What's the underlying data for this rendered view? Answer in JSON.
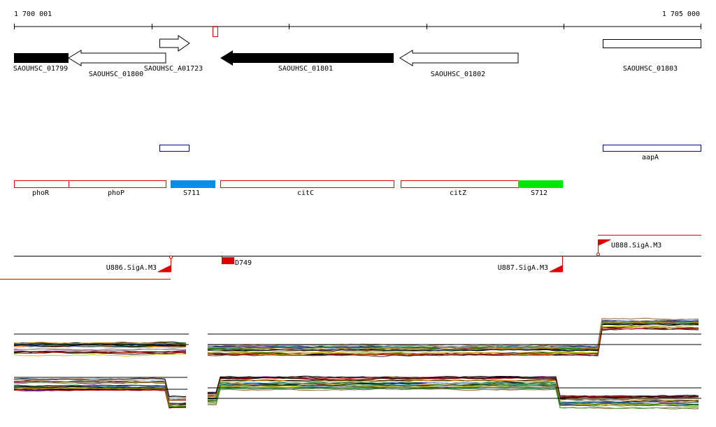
{
  "ruler": {
    "start_label": "1 700 001",
    "end_label": "1 705 000"
  },
  "genes": [
    {
      "label": "SAOUHSC_01799"
    },
    {
      "label": "SAOUHSC_01800"
    },
    {
      "label": "SAOUHSC_A01723"
    },
    {
      "label": "SAOUHSC_01801"
    },
    {
      "label": "SAOUHSC_01802"
    },
    {
      "label": "SAOUHSC_01803"
    }
  ],
  "annotations": [
    {
      "label": "aapA"
    }
  ],
  "regions": [
    {
      "label": "phoR"
    },
    {
      "label": "phoP"
    },
    {
      "label": "S711"
    },
    {
      "label": "citC"
    },
    {
      "label": "citZ"
    },
    {
      "label": "S712"
    }
  ],
  "promoters": [
    {
      "label": "U886.SigA.M3"
    },
    {
      "label": "D749"
    },
    {
      "label": "U887.SigA.M3"
    },
    {
      "label": "U888.SigA.M3"
    }
  ]
}
